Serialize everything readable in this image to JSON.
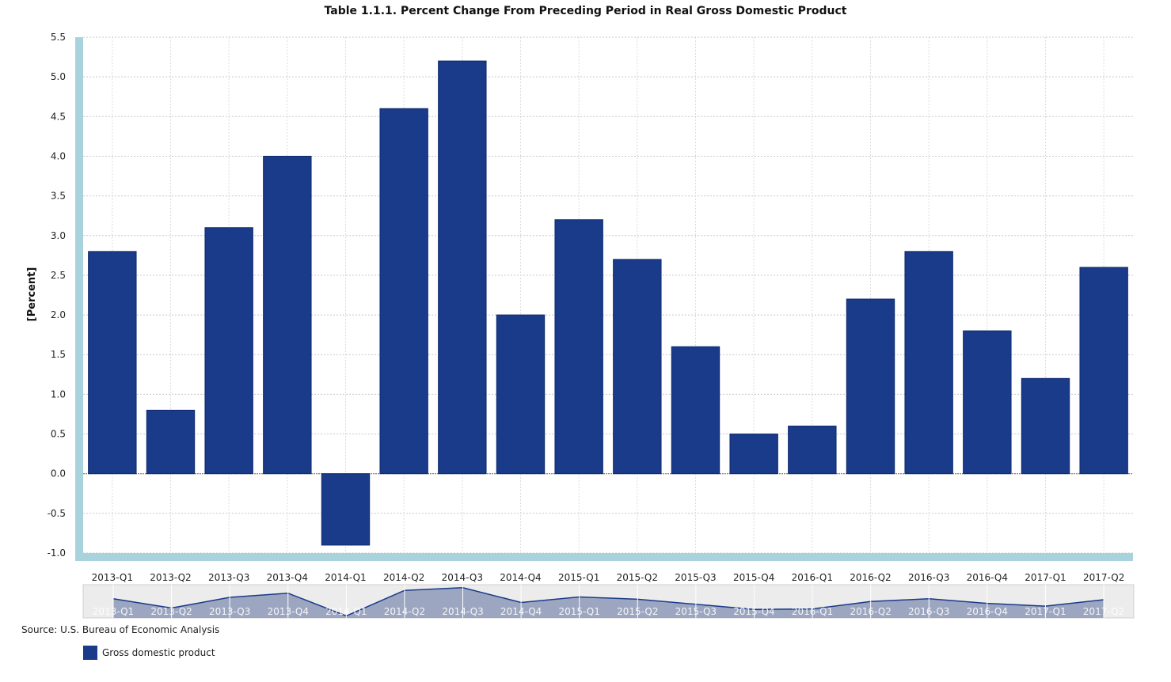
{
  "chart_data": {
    "type": "bar",
    "title": "Table 1.1.1. Percent Change From Preceding Period in Real Gross Domestic Product",
    "ylabel": "[Percent]",
    "xlabel": "",
    "ylim": [
      -1.0,
      5.5
    ],
    "yticks": [
      "5.5",
      "5.0",
      "4.5",
      "4.0",
      "3.5",
      "3.0",
      "2.5",
      "2.0",
      "1.5",
      "1.0",
      "0.5",
      "0.0",
      "-0.5",
      "-1.0"
    ],
    "categories": [
      "2013-Q1",
      "2013-Q2",
      "2013-Q3",
      "2013-Q4",
      "2014-Q1",
      "2014-Q2",
      "2014-Q3",
      "2014-Q4",
      "2015-Q1",
      "2015-Q2",
      "2015-Q3",
      "2015-Q4",
      "2016-Q1",
      "2016-Q2",
      "2016-Q3",
      "2016-Q4",
      "2017-Q1",
      "2017-Q2"
    ],
    "series": [
      {
        "name": "Gross domestic product",
        "values": [
          2.8,
          0.8,
          3.1,
          4.0,
          -0.9,
          4.6,
          5.2,
          2.0,
          3.2,
          2.7,
          1.6,
          0.5,
          0.6,
          2.2,
          2.8,
          1.8,
          1.2,
          2.6
        ]
      }
    ],
    "grid": true,
    "legend_position": "bottom-left",
    "colors": {
      "bar": "#1a3a8a",
      "axis_band": "#a8d3dc",
      "navigator_bg": "#ececec",
      "navigator_fill": "#8e9ab8",
      "navigator_line": "#1a3a8a"
    }
  },
  "source": "Source: U.S. Bureau of Economic Analysis"
}
